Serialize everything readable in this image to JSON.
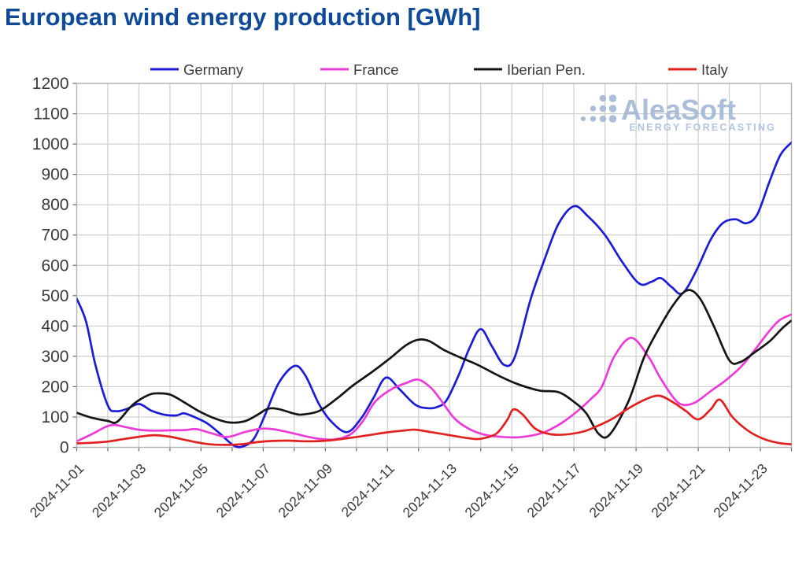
{
  "title": "European wind energy production [GWh]",
  "title_color": "#0f4a99",
  "logo": {
    "name": "AleaSoft",
    "tagline": "ENERGY FORECASTING",
    "text_color": "#a6bbd8",
    "tagline_color": "#aec2dd"
  },
  "colors": {
    "grid": "#cdcdcd",
    "plot_border": "#b0b0b0",
    "tick_mark": "#666666",
    "tick_label": "#3a3a3a",
    "legend_label": "#3c3c3c",
    "background": "#ffffff"
  },
  "chart_data": {
    "type": "line",
    "title": "European wind energy production [GWh]",
    "xlabel": "",
    "ylabel": "",
    "x_unit": "days since 2024-11-01",
    "x_days_total": 23,
    "x_range": [
      "2024-11-01",
      "2024-11-24"
    ],
    "ylim": [
      0,
      1200
    ],
    "y_tick_step": 100,
    "grid": true,
    "legend_position": "top",
    "x_tick_positions_days": [
      0,
      2,
      4,
      6,
      8,
      10,
      12,
      14,
      16,
      18,
      20,
      22
    ],
    "x_tick_labels": [
      "2024-11-01",
      "2024-11-03",
      "2024-11-05",
      "2024-11-07",
      "2024-11-09",
      "2024-11-11",
      "2024-11-13",
      "2024-11-15",
      "2024-11-17",
      "2024-11-19",
      "2024-11-21",
      "2024-11-23"
    ],
    "series": [
      {
        "name": "Germany",
        "color": "#1c1cd6",
        "points": [
          [
            0,
            490
          ],
          [
            0.3,
            415
          ],
          [
            0.6,
            272
          ],
          [
            1.0,
            138
          ],
          [
            1.25,
            119
          ],
          [
            1.6,
            126
          ],
          [
            2.0,
            143
          ],
          [
            2.4,
            121
          ],
          [
            2.8,
            108
          ],
          [
            3.2,
            105
          ],
          [
            3.45,
            112
          ],
          [
            3.8,
            99
          ],
          [
            4.2,
            79
          ],
          [
            4.6,
            46
          ],
          [
            5.05,
            6
          ],
          [
            5.35,
            3
          ],
          [
            5.7,
            28
          ],
          [
            6.05,
            104
          ],
          [
            6.5,
            212
          ],
          [
            7.0,
            268
          ],
          [
            7.35,
            238
          ],
          [
            7.8,
            142
          ],
          [
            8.2,
            84
          ],
          [
            8.7,
            50
          ],
          [
            9.15,
            95
          ],
          [
            9.55,
            163
          ],
          [
            9.95,
            230
          ],
          [
            10.4,
            190
          ],
          [
            10.9,
            140
          ],
          [
            11.3,
            129
          ],
          [
            11.6,
            133
          ],
          [
            11.9,
            155
          ],
          [
            12.3,
            240
          ],
          [
            12.65,
            330
          ],
          [
            13.0,
            390
          ],
          [
            13.35,
            335
          ],
          [
            13.75,
            272
          ],
          [
            14.1,
            298
          ],
          [
            14.6,
            486
          ],
          [
            15.05,
            618
          ],
          [
            15.5,
            736
          ],
          [
            16.0,
            795
          ],
          [
            16.45,
            762
          ],
          [
            17.0,
            700
          ],
          [
            17.55,
            612
          ],
          [
            18.1,
            540
          ],
          [
            18.5,
            546
          ],
          [
            18.8,
            558
          ],
          [
            19.15,
            528
          ],
          [
            19.5,
            508
          ],
          [
            19.95,
            585
          ],
          [
            20.4,
            685
          ],
          [
            20.8,
            740
          ],
          [
            21.2,
            752
          ],
          [
            21.55,
            739
          ],
          [
            21.9,
            768
          ],
          [
            22.3,
            878
          ],
          [
            22.65,
            965
          ],
          [
            23,
            1005
          ]
        ]
      },
      {
        "name": "France",
        "color": "#ec3cd8",
        "points": [
          [
            0,
            20
          ],
          [
            0.5,
            44
          ],
          [
            0.9,
            66
          ],
          [
            1.2,
            74
          ],
          [
            1.6,
            66
          ],
          [
            2.0,
            58
          ],
          [
            2.5,
            55
          ],
          [
            3.0,
            56
          ],
          [
            3.5,
            57
          ],
          [
            3.85,
            60
          ],
          [
            4.35,
            46
          ],
          [
            4.85,
            34
          ],
          [
            5.4,
            50
          ],
          [
            5.9,
            61
          ],
          [
            6.3,
            60
          ],
          [
            6.8,
            50
          ],
          [
            7.3,
            38
          ],
          [
            7.8,
            28
          ],
          [
            8.3,
            26
          ],
          [
            8.8,
            42
          ],
          [
            9.2,
            85
          ],
          [
            9.6,
            150
          ],
          [
            10.1,
            190
          ],
          [
            10.6,
            212
          ],
          [
            11.0,
            223
          ],
          [
            11.4,
            196
          ],
          [
            11.7,
            158
          ],
          [
            12.15,
            96
          ],
          [
            12.6,
            62
          ],
          [
            13.1,
            42
          ],
          [
            13.6,
            35
          ],
          [
            14.2,
            33
          ],
          [
            14.7,
            40
          ],
          [
            15.1,
            52
          ],
          [
            15.6,
            80
          ],
          [
            16.1,
            118
          ],
          [
            16.55,
            160
          ],
          [
            16.9,
            200
          ],
          [
            17.3,
            300
          ],
          [
            17.85,
            361
          ],
          [
            18.4,
            298
          ],
          [
            18.75,
            234
          ],
          [
            19.2,
            164
          ],
          [
            19.5,
            140
          ],
          [
            19.9,
            148
          ],
          [
            20.4,
            185
          ],
          [
            20.9,
            222
          ],
          [
            21.4,
            268
          ],
          [
            21.8,
            318
          ],
          [
            22.2,
            372
          ],
          [
            22.6,
            418
          ],
          [
            23,
            438
          ]
        ]
      },
      {
        "name": "Iberian Pen.",
        "color": "#141414",
        "points": [
          [
            0,
            114
          ],
          [
            0.5,
            97
          ],
          [
            1.0,
            87
          ],
          [
            1.3,
            84
          ],
          [
            1.8,
            140
          ],
          [
            2.3,
            172
          ],
          [
            2.6,
            178
          ],
          [
            3.0,
            174
          ],
          [
            3.4,
            152
          ],
          [
            3.9,
            121
          ],
          [
            4.4,
            97
          ],
          [
            4.9,
            82
          ],
          [
            5.4,
            86
          ],
          [
            5.8,
            106
          ],
          [
            6.15,
            127
          ],
          [
            6.5,
            126
          ],
          [
            7.0,
            111
          ],
          [
            7.25,
            108
          ],
          [
            7.8,
            120
          ],
          [
            8.4,
            163
          ],
          [
            8.9,
            205
          ],
          [
            9.5,
            248
          ],
          [
            10.1,
            295
          ],
          [
            10.6,
            337
          ],
          [
            11.0,
            355
          ],
          [
            11.35,
            350
          ],
          [
            11.8,
            322
          ],
          [
            12.3,
            298
          ],
          [
            12.9,
            272
          ],
          [
            13.6,
            235
          ],
          [
            14.2,
            208
          ],
          [
            14.9,
            187
          ],
          [
            15.5,
            182
          ],
          [
            16.0,
            150
          ],
          [
            16.4,
            112
          ],
          [
            16.8,
            44
          ],
          [
            17.15,
            42
          ],
          [
            17.75,
            150
          ],
          [
            18.25,
            295
          ],
          [
            18.7,
            385
          ],
          [
            19.2,
            470
          ],
          [
            19.65,
            518
          ],
          [
            20.05,
            492
          ],
          [
            20.5,
            400
          ],
          [
            21.0,
            287
          ],
          [
            21.35,
            281
          ],
          [
            21.8,
            312
          ],
          [
            22.3,
            350
          ],
          [
            22.7,
            392
          ],
          [
            23,
            418
          ]
        ]
      },
      {
        "name": "Italy",
        "color": "#e12120",
        "points": [
          [
            0,
            13
          ],
          [
            0.5,
            15
          ],
          [
            1.0,
            19
          ],
          [
            1.5,
            27
          ],
          [
            2.1,
            36
          ],
          [
            2.5,
            40
          ],
          [
            3.0,
            35
          ],
          [
            3.6,
            22
          ],
          [
            4.2,
            11
          ],
          [
            4.8,
            8
          ],
          [
            5.3,
            10
          ],
          [
            5.8,
            17
          ],
          [
            6.3,
            21
          ],
          [
            6.8,
            22
          ],
          [
            7.3,
            20
          ],
          [
            7.9,
            21
          ],
          [
            8.5,
            27
          ],
          [
            9.2,
            37
          ],
          [
            9.9,
            48
          ],
          [
            10.5,
            55
          ],
          [
            10.9,
            58
          ],
          [
            11.4,
            50
          ],
          [
            12.0,
            40
          ],
          [
            12.6,
            30
          ],
          [
            13.0,
            28
          ],
          [
            13.5,
            45
          ],
          [
            13.85,
            90
          ],
          [
            14.05,
            125
          ],
          [
            14.35,
            108
          ],
          [
            14.75,
            62
          ],
          [
            15.2,
            44
          ],
          [
            15.7,
            42
          ],
          [
            16.3,
            52
          ],
          [
            16.75,
            70
          ],
          [
            17.25,
            95
          ],
          [
            17.75,
            128
          ],
          [
            18.3,
            158
          ],
          [
            18.75,
            170
          ],
          [
            19.2,
            148
          ],
          [
            19.6,
            120
          ],
          [
            20.0,
            92
          ],
          [
            20.4,
            125
          ],
          [
            20.7,
            157
          ],
          [
            21.1,
            100
          ],
          [
            21.6,
            55
          ],
          [
            22.1,
            28
          ],
          [
            22.6,
            14
          ],
          [
            23,
            10
          ]
        ]
      }
    ]
  }
}
